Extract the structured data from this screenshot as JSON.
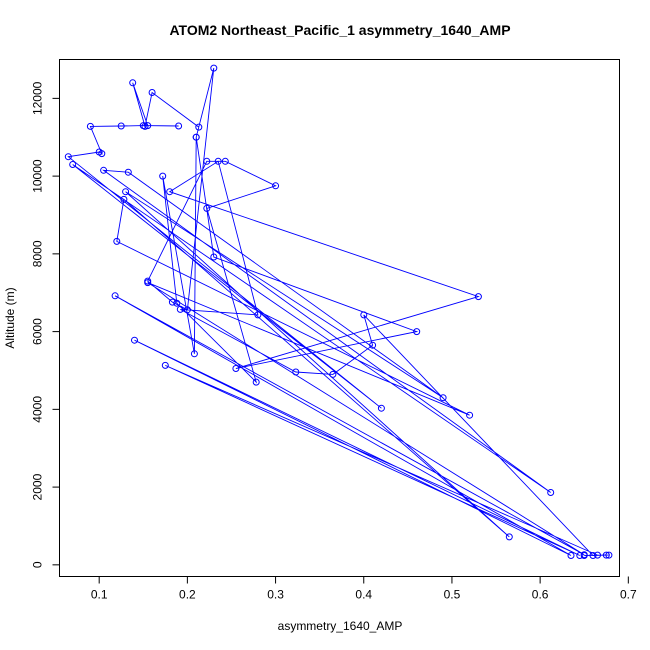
{
  "chart_data": {
    "type": "line",
    "title": "ATOM2 Northeast_Pacific_1 asymmetry_1640_AMP",
    "xlabel": "asymmetry_1640_AMP",
    "ylabel": "Altitude (m)",
    "xlim": [
      0.055,
      0.69
    ],
    "ylim": [
      -300,
      13000
    ],
    "x_ticks": [
      0.1,
      0.2,
      0.3,
      0.4,
      0.5,
      0.6,
      0.7
    ],
    "x_tick_labels": [
      "0.1",
      "0.2",
      "0.3",
      "0.4",
      "0.5",
      "0.6",
      "0.7"
    ],
    "y_ticks": [
      0,
      2000,
      4000,
      6000,
      8000,
      10000,
      12000
    ],
    "y_tick_labels": [
      "0",
      "2000",
      "4000",
      "6000",
      "8000",
      "10000",
      "12000"
    ],
    "grid": false,
    "legend": "none",
    "series": [
      {
        "color": "#0000ff",
        "marker": "open-circle",
        "points": [
          [
            0.665,
            250
          ],
          [
            0.175,
            5130
          ],
          [
            0.645,
            240
          ],
          [
            0.14,
            5780
          ],
          [
            0.635,
            240
          ],
          [
            0.118,
            6920
          ],
          [
            0.65,
            260
          ],
          [
            0.155,
            7260
          ],
          [
            0.52,
            3850
          ],
          [
            0.12,
            8320
          ],
          [
            0.128,
            9400
          ],
          [
            0.565,
            720
          ],
          [
            0.13,
            9600
          ],
          [
            0.49,
            4300
          ],
          [
            0.133,
            10100
          ],
          [
            0.105,
            10150
          ],
          [
            0.612,
            1860
          ],
          [
            0.07,
            10300
          ],
          [
            0.42,
            4030
          ],
          [
            0.065,
            10500
          ],
          [
            0.1,
            10620
          ],
          [
            0.103,
            10580
          ],
          [
            0.09,
            11280
          ],
          [
            0.125,
            11290
          ],
          [
            0.15,
            11300
          ],
          [
            0.19,
            11290
          ],
          [
            0.155,
            11300
          ],
          [
            0.138,
            12400
          ],
          [
            0.152,
            11280
          ],
          [
            0.16,
            12150
          ],
          [
            0.213,
            11260
          ],
          [
            0.21,
            11000
          ],
          [
            0.23,
            12780
          ],
          [
            0.2,
            6560
          ],
          [
            0.183,
            6760
          ],
          [
            0.155,
            7300
          ],
          [
            0.222,
            10380
          ],
          [
            0.243,
            10380
          ],
          [
            0.3,
            9750
          ],
          [
            0.222,
            9170
          ],
          [
            0.278,
            4700
          ],
          [
            0.188,
            6730
          ],
          [
            0.172,
            10000
          ],
          [
            0.208,
            5430
          ],
          [
            0.21,
            11000
          ],
          [
            0.23,
            7920
          ],
          [
            0.46,
            6000
          ],
          [
            0.255,
            5050
          ],
          [
            0.53,
            6900
          ],
          [
            0.18,
            9600
          ],
          [
            0.235,
            10380
          ],
          [
            0.28,
            6430
          ],
          [
            0.192,
            6570
          ],
          [
            0.323,
            4960
          ],
          [
            0.365,
            4900
          ],
          [
            0.41,
            5650
          ],
          [
            0.4,
            6430
          ],
          [
            0.66,
            240
          ],
          [
            0.675,
            250
          ],
          [
            0.65,
            240
          ],
          [
            0.678,
            250
          ]
        ]
      }
    ]
  }
}
